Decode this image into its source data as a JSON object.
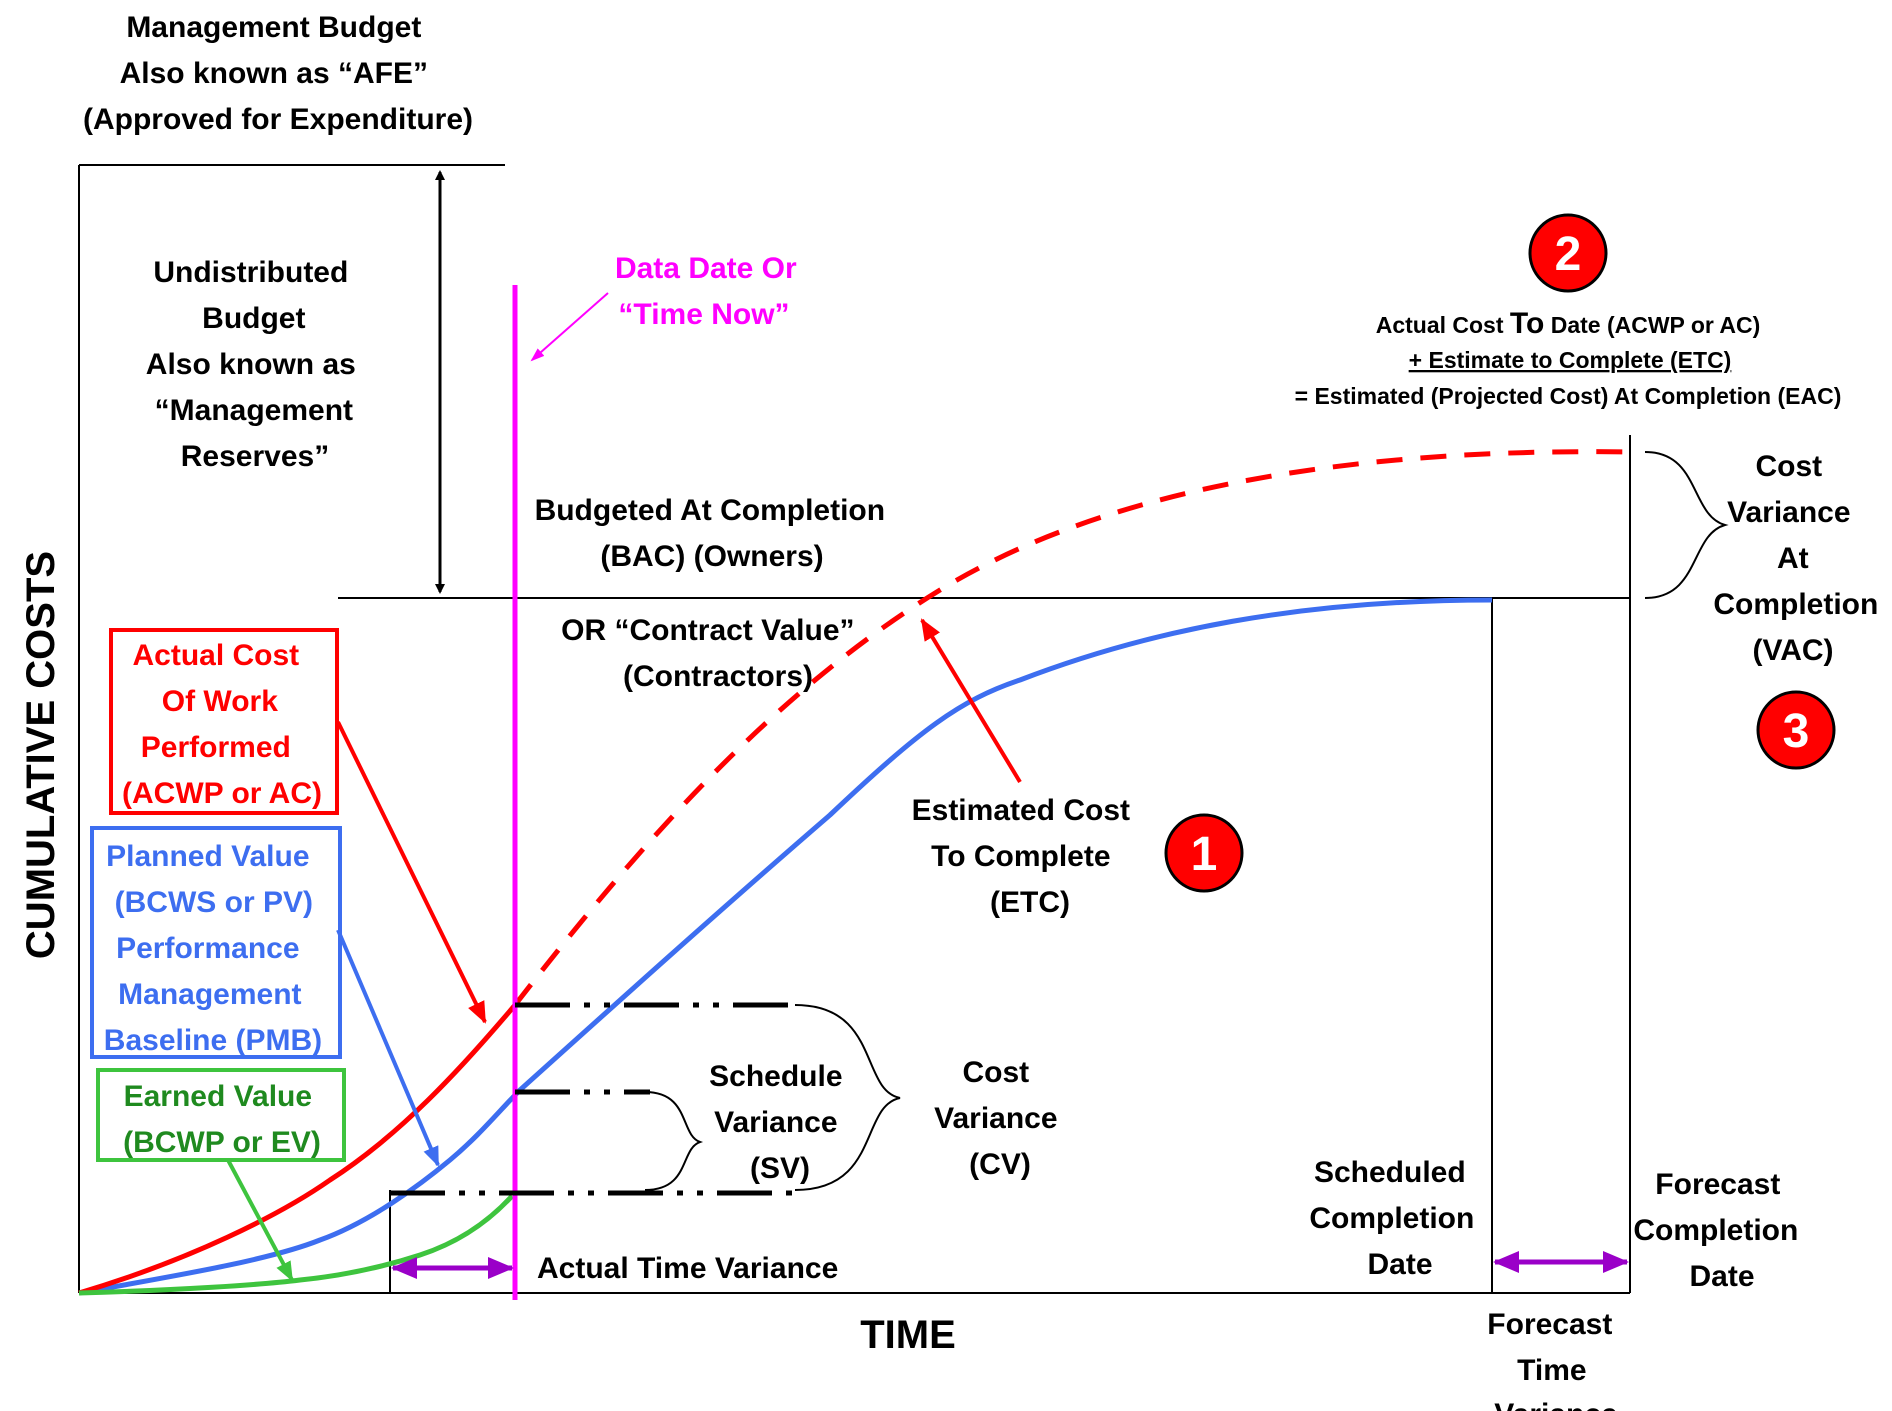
{
  "management_budget": [
    "Management Budget",
    "Also known as “AFE”",
    "(Approved for Expenditure)"
  ],
  "undistributed_budget": [
    "Undistributed",
    "Budget",
    "Also known as",
    "“Management",
    "Reserves”"
  ],
  "data_date": [
    "Data Date Or",
    "“Time Now”"
  ],
  "bac": [
    "Budgeted At Completion",
    "(BAC) (Owners)"
  ],
  "contract_value": [
    "OR “Contract Value”",
    "(Contractors)"
  ],
  "acwp_box": [
    "Actual Cost",
    "Of Work",
    "Performed",
    "(ACWP or AC)"
  ],
  "pv_box": [
    "Planned Value",
    "(BCWS or PV)",
    "Performance",
    "Management",
    "Baseline (PMB)"
  ],
  "ev_box": [
    "Earned Value",
    "(BCWP or EV)"
  ],
  "etc_label": [
    "Estimated Cost",
    "To Complete",
    "(ETC)"
  ],
  "eac_formula": {
    "line1_pre": "Actual Cost ",
    "line1_big": "To",
    "line1_post": " Date (ACWP or AC)",
    "line2": "+ Estimate to Complete (ETC)",
    "line3": "= Estimated (Projected Cost) At Completion (EAC)"
  },
  "vac_label": [
    "Cost",
    "Variance",
    "At",
    "Completion",
    "(VAC)"
  ],
  "schedule_variance": [
    "Schedule",
    "Variance",
    "(SV)"
  ],
  "cost_variance": [
    "Cost",
    "Variance",
    "(CV)"
  ],
  "actual_time_variance": "Actual Time Variance",
  "scheduled_completion": [
    "Scheduled",
    "Completion",
    "Date"
  ],
  "forecast_completion": [
    "Forecast",
    "Completion",
    "Date"
  ],
  "forecast_time_variance": [
    "Forecast",
    "Time",
    "Variance"
  ],
  "axes": {
    "x_label": "TIME",
    "y_label": "CUMULATIVE COSTS"
  },
  "badges": [
    "1",
    "2",
    "3"
  ],
  "colors": {
    "actual_cost": "#ff0000",
    "planned_value": "#3d6ef0",
    "earned_value": "#3ec43e",
    "data_date": "#ff00ff",
    "time_variance_arrows": "#9a00c8",
    "badge_fill": "#ff0000",
    "text": "#000000"
  }
}
